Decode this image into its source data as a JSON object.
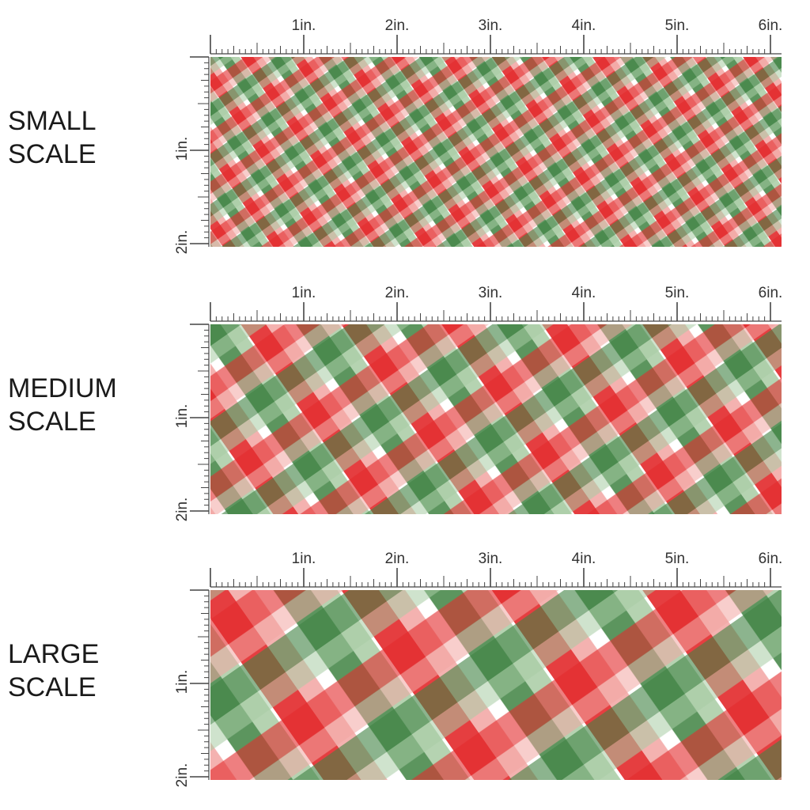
{
  "ruler": {
    "top_labels": [
      "1in.",
      "2in.",
      "3in.",
      "4in.",
      "5in.",
      "6in."
    ],
    "side_labels": [
      "1in.",
      "2in."
    ]
  },
  "panels": [
    {
      "id": "small",
      "label_line1": "SMALL",
      "label_line2": "SCALE",
      "stripe_scale": 1
    },
    {
      "id": "medium",
      "label_line1": "MEDIUM",
      "label_line2": "SCALE",
      "stripe_scale": 2
    },
    {
      "id": "large",
      "label_line1": "LARGE",
      "label_line2": "SCALE",
      "stripe_scale": 3
    }
  ],
  "colors": {
    "red": "#e3292b",
    "pink": "#f2a5a2",
    "dark_green": "#3f8242",
    "light_green": "#a8cca4",
    "overlap_dark": "#6b6040",
    "ruler": "#444444",
    "background": "#ffffff"
  },
  "pattern": "diagonal red and green gingham plaid"
}
